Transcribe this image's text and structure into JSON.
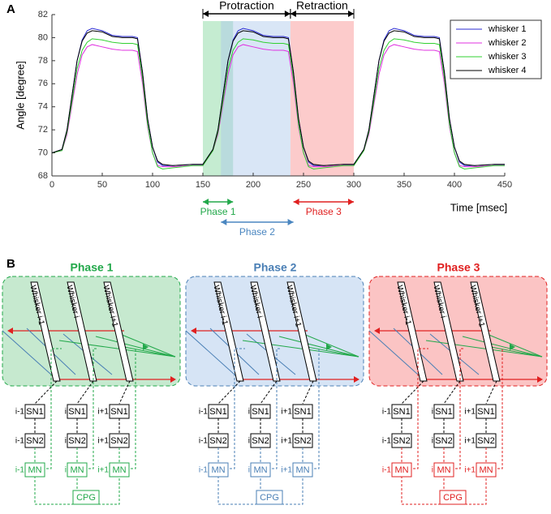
{
  "panel_labels": [
    "A",
    "B"
  ],
  "chart_data": {
    "type": "line",
    "xlabel": "Time [msec]",
    "ylabel": "Angle [degree]",
    "x": [
      0,
      10,
      15,
      20,
      25,
      30,
      35,
      40,
      50,
      60,
      70,
      80,
      85,
      90,
      95,
      100,
      105,
      110,
      120,
      140,
      150,
      160,
      165,
      170,
      175,
      180,
      185,
      190,
      200,
      210,
      220,
      230,
      235,
      240,
      245,
      250,
      255,
      260,
      270,
      290,
      300,
      310,
      315,
      320,
      325,
      330,
      335,
      340,
      350,
      360,
      370,
      380,
      385,
      390,
      395,
      400,
      405,
      410,
      420,
      440,
      450
    ],
    "series": [
      {
        "name": "whisker 1",
        "color": "#2a2ad0",
        "values": [
          70,
          70.3,
          72,
          75,
          78,
          79.8,
          80.6,
          80.8,
          80.6,
          80.2,
          80.1,
          80.1,
          80.0,
          77,
          73,
          70.5,
          69.2,
          68.9,
          68.9,
          69.0,
          69.0,
          70.3,
          72,
          75,
          78,
          79.8,
          80.6,
          80.8,
          80.6,
          80.2,
          80.1,
          80.1,
          80.0,
          77,
          73,
          70.5,
          69.2,
          68.9,
          68.9,
          69.0,
          69.0,
          70.3,
          72,
          75,
          78,
          79.8,
          80.6,
          80.8,
          80.6,
          80.2,
          80.1,
          80.1,
          80.0,
          77,
          73,
          70.5,
          69.2,
          68.9,
          68.9,
          69.0,
          69.0
        ]
      },
      {
        "name": "whisker 2",
        "color": "#e030e0",
        "values": [
          70,
          70.2,
          71.6,
          74.2,
          76.8,
          78.5,
          79.2,
          79.4,
          79.2,
          79,
          78.9,
          78.9,
          78.8,
          76,
          72.3,
          70,
          68.9,
          68.8,
          68.8,
          68.9,
          68.9,
          70.2,
          71.6,
          74.2,
          76.8,
          78.5,
          79.2,
          79.4,
          79.2,
          79,
          78.9,
          78.9,
          78.8,
          76,
          72.3,
          70,
          68.9,
          68.8,
          68.8,
          68.9,
          68.9,
          70.2,
          71.6,
          74.2,
          76.8,
          78.5,
          79.2,
          79.4,
          79.2,
          79,
          78.9,
          78.9,
          78.8,
          76,
          72.3,
          70,
          68.9,
          68.8,
          68.8,
          68.9,
          68.9
        ]
      },
      {
        "name": "whisker 3",
        "color": "#30d030",
        "values": [
          70,
          70.2,
          71.8,
          74.5,
          77.3,
          78.9,
          79.6,
          79.9,
          79.8,
          79.6,
          79.5,
          79.5,
          79.4,
          76.5,
          72.5,
          70,
          68.8,
          68.6,
          68.7,
          68.9,
          68.9,
          70.2,
          71.8,
          74.5,
          77.3,
          78.9,
          79.6,
          79.9,
          79.8,
          79.6,
          79.5,
          79.5,
          79.4,
          76.5,
          72.5,
          70,
          68.8,
          68.6,
          68.7,
          68.9,
          68.9,
          70.2,
          71.8,
          74.5,
          77.3,
          78.9,
          79.6,
          79.9,
          79.8,
          79.6,
          79.5,
          79.5,
          79.4,
          76.5,
          72.5,
          70,
          68.8,
          68.6,
          68.7,
          68.9,
          68.9
        ]
      },
      {
        "name": "whisker 4",
        "color": "#000000",
        "values": [
          70,
          70.3,
          72,
          75,
          78,
          79.7,
          80.4,
          80.6,
          80.5,
          80.1,
          80.0,
          80.0,
          79.9,
          77,
          73,
          70.5,
          69.3,
          69.0,
          68.9,
          69.0,
          69.0,
          70.3,
          72,
          75,
          78,
          79.7,
          80.4,
          80.6,
          80.5,
          80.1,
          80.0,
          80.0,
          79.9,
          77,
          73,
          70.5,
          69.3,
          69.0,
          68.9,
          69.0,
          69.0,
          70.3,
          72,
          75,
          78,
          79.7,
          80.4,
          80.6,
          80.5,
          80.1,
          80.0,
          80.0,
          79.9,
          77,
          73,
          70.5,
          69.3,
          69.0,
          68.9,
          69.0,
          69.0
        ]
      }
    ],
    "xlim": [
      0,
      450
    ],
    "xticks": [
      0,
      50,
      100,
      150,
      200,
      250,
      300,
      350,
      400,
      450
    ],
    "ylim": [
      68,
      82
    ],
    "yticks": [
      68,
      70,
      72,
      74,
      76,
      78,
      80,
      82
    ],
    "legend": "top-right",
    "shades": [
      {
        "x": [
          150,
          180
        ],
        "color": "#7fd49a"
      },
      {
        "x": [
          168,
          237
        ],
        "color": "#aac8ec"
      },
      {
        "x": [
          237,
          300
        ],
        "color": "#f88c8c"
      }
    ],
    "spans": [
      {
        "label": "Protraction",
        "x": [
          150,
          237
        ]
      },
      {
        "label": "Retraction",
        "x": [
          237,
          300
        ]
      }
    ],
    "phases": [
      {
        "label": "Phase 1",
        "x": [
          150,
          180
        ],
        "color": "#22a84a"
      },
      {
        "label": "Phase 2",
        "x": [
          168,
          240
        ],
        "color": "#4a86c0"
      },
      {
        "label": "Phase 3",
        "x": [
          240,
          300
        ],
        "color": "#e02020"
      }
    ]
  },
  "diagram": {
    "panels": [
      {
        "title": "Phase 1",
        "color": "#22a84a",
        "fill": "#c6e9cf"
      },
      {
        "title": "Phase 2",
        "color": "#4a7fb5",
        "fill": "#d6e4f5"
      },
      {
        "title": "Phase 3",
        "color": "#e02020",
        "fill": "#fbc4c4"
      }
    ],
    "whiskers": [
      "Whisker i-1",
      "Whisker i",
      "Whisker i+1"
    ],
    "indices": [
      "i-1",
      "i",
      "i+1"
    ],
    "neurons": [
      "SN1",
      "SN2",
      "MN"
    ],
    "cpg": "CPG"
  }
}
